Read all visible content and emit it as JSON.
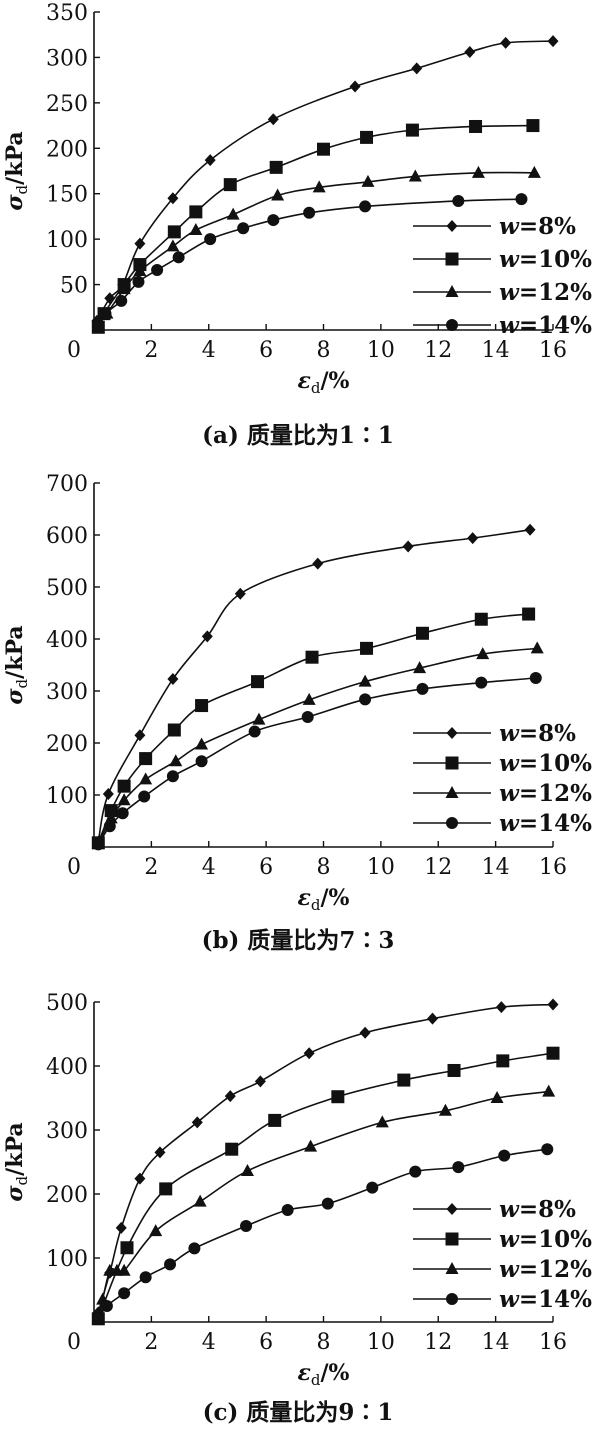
{
  "chart_data": [
    {
      "type": "line",
      "title": "(a) 质量比为1∶1",
      "xlabel": "ε_d/%",
      "ylabel": "σ_d/kPa",
      "xlim": [
        0,
        16
      ],
      "ylim": [
        0,
        350
      ],
      "xticks": [
        0,
        2,
        4,
        6,
        8,
        10,
        12,
        14,
        16
      ],
      "yticks": [
        50,
        100,
        150,
        200,
        250,
        300,
        350
      ],
      "legend_placement": "bottom-right",
      "series": [
        {
          "name": "w=8%",
          "marker": "diamond",
          "x": [
            0.1,
            0.55,
            1.0,
            1.6,
            2.75,
            4.05,
            6.25,
            9.1,
            11.25,
            13.1,
            14.35,
            16.0
          ],
          "y": [
            10,
            35,
            50,
            95,
            145,
            187,
            232,
            268,
            288,
            306,
            316,
            318
          ]
        },
        {
          "name": "w=10%",
          "marker": "square",
          "x": [
            0.15,
            0.35,
            1.05,
            1.6,
            2.8,
            3.55,
            4.75,
            6.35,
            8.0,
            9.5,
            11.1,
            13.3,
            15.3
          ],
          "y": [
            3,
            18,
            50,
            72,
            108,
            130,
            160,
            179,
            199,
            212,
            220,
            224,
            225
          ]
        },
        {
          "name": "w=12%",
          "marker": "triangle",
          "x": [
            0.15,
            0.45,
            1.05,
            1.6,
            2.75,
            3.55,
            4.85,
            6.4,
            7.85,
            9.55,
            11.2,
            13.4,
            15.35
          ],
          "y": [
            5,
            18,
            45,
            65,
            92,
            110,
            127,
            148,
            157,
            163,
            169,
            173,
            173
          ]
        },
        {
          "name": "w=14%",
          "marker": "circle",
          "x": [
            0.15,
            0.4,
            0.95,
            1.55,
            2.2,
            2.95,
            4.05,
            5.2,
            6.25,
            7.5,
            9.45,
            12.7,
            14.9
          ],
          "y": [
            4,
            18,
            32,
            53,
            66,
            80,
            100,
            112,
            121,
            129,
            136,
            142,
            144
          ]
        }
      ]
    },
    {
      "type": "line",
      "title": "(b) 质量比为7∶3",
      "xlabel": "ε_d/%",
      "ylabel": "σ_d/kPa",
      "xlim": [
        0,
        16
      ],
      "ylim": [
        0,
        700
      ],
      "xticks": [
        0,
        2,
        4,
        6,
        8,
        10,
        12,
        14,
        16
      ],
      "yticks": [
        100,
        200,
        300,
        400,
        500,
        600,
        700
      ],
      "legend_placement": "bottom-right",
      "series": [
        {
          "name": "w=8%",
          "marker": "diamond",
          "x": [
            0.15,
            0.5,
            1.6,
            2.75,
            3.95,
            5.1,
            7.8,
            10.95,
            13.2,
            15.2
          ],
          "y": [
            10,
            102,
            215,
            323,
            405,
            487,
            545,
            578,
            594,
            610
          ]
        },
        {
          "name": "w=10%",
          "marker": "square",
          "x": [
            0.15,
            0.6,
            1.05,
            1.8,
            2.8,
            3.75,
            5.7,
            7.6,
            9.5,
            11.45,
            13.5,
            15.15
          ],
          "y": [
            8,
            70,
            117,
            170,
            225,
            272,
            318,
            365,
            382,
            411,
            438,
            448
          ]
        },
        {
          "name": "w=12%",
          "marker": "triangle",
          "x": [
            0.15,
            0.6,
            1.05,
            1.8,
            2.85,
            3.75,
            5.75,
            7.5,
            9.45,
            11.35,
            13.55,
            15.45
          ],
          "y": [
            7,
            55,
            90,
            130,
            165,
            197,
            245,
            283,
            318,
            344,
            371,
            382
          ]
        },
        {
          "name": "w=14%",
          "marker": "circle",
          "x": [
            0.15,
            0.55,
            1.0,
            1.75,
            2.75,
            3.75,
            5.6,
            7.45,
            9.45,
            11.45,
            13.5,
            15.4
          ],
          "y": [
            5,
            40,
            65,
            97,
            136,
            165,
            222,
            250,
            284,
            304,
            316,
            325
          ]
        }
      ]
    },
    {
      "type": "line",
      "title": "(c) 质量比为9∶1",
      "xlabel": "ε_d/%",
      "ylabel": "σ_d/kPa",
      "xlim": [
        0,
        16
      ],
      "ylim": [
        0,
        500
      ],
      "xticks": [
        0,
        2,
        4,
        6,
        8,
        10,
        12,
        14,
        16
      ],
      "yticks": [
        100,
        200,
        300,
        400,
        500
      ],
      "legend_placement": "bottom-right",
      "series": [
        {
          "name": "w=8%",
          "marker": "diamond",
          "x": [
            0.15,
            0.55,
            0.95,
            1.6,
            2.3,
            3.6,
            4.75,
            5.8,
            7.5,
            9.45,
            11.8,
            14.2,
            16.0
          ],
          "y": [
            15,
            77,
            147,
            224,
            265,
            312,
            353,
            376,
            420,
            452,
            474,
            492,
            496
          ]
        },
        {
          "name": "w=10%",
          "marker": "square",
          "x": [
            0.15,
            1.15,
            2.5,
            4.8,
            6.3,
            8.5,
            10.8,
            12.55,
            14.25,
            16.0
          ],
          "y": [
            5,
            116,
            208,
            270,
            315,
            352,
            378,
            393,
            408,
            420
          ]
        },
        {
          "name": "w=12%",
          "marker": "triangle",
          "x": [
            0.15,
            0.3,
            0.55,
            0.8,
            1.05,
            2.15,
            3.7,
            5.35,
            7.55,
            10.05,
            12.25,
            14.05,
            15.85
          ],
          "y": [
            5,
            35,
            80,
            80,
            80,
            142,
            188,
            236,
            274,
            312,
            330,
            350,
            360
          ]
        },
        {
          "name": "w=14%",
          "marker": "circle",
          "x": [
            0.15,
            0.45,
            1.05,
            1.8,
            2.65,
            3.5,
            5.3,
            6.75,
            8.15,
            9.7,
            11.2,
            12.7,
            14.3,
            15.8
          ],
          "y": [
            5,
            25,
            45,
            70,
            90,
            115,
            150,
            175,
            185,
            210,
            235,
            242,
            260,
            270
          ]
        }
      ]
    }
  ]
}
